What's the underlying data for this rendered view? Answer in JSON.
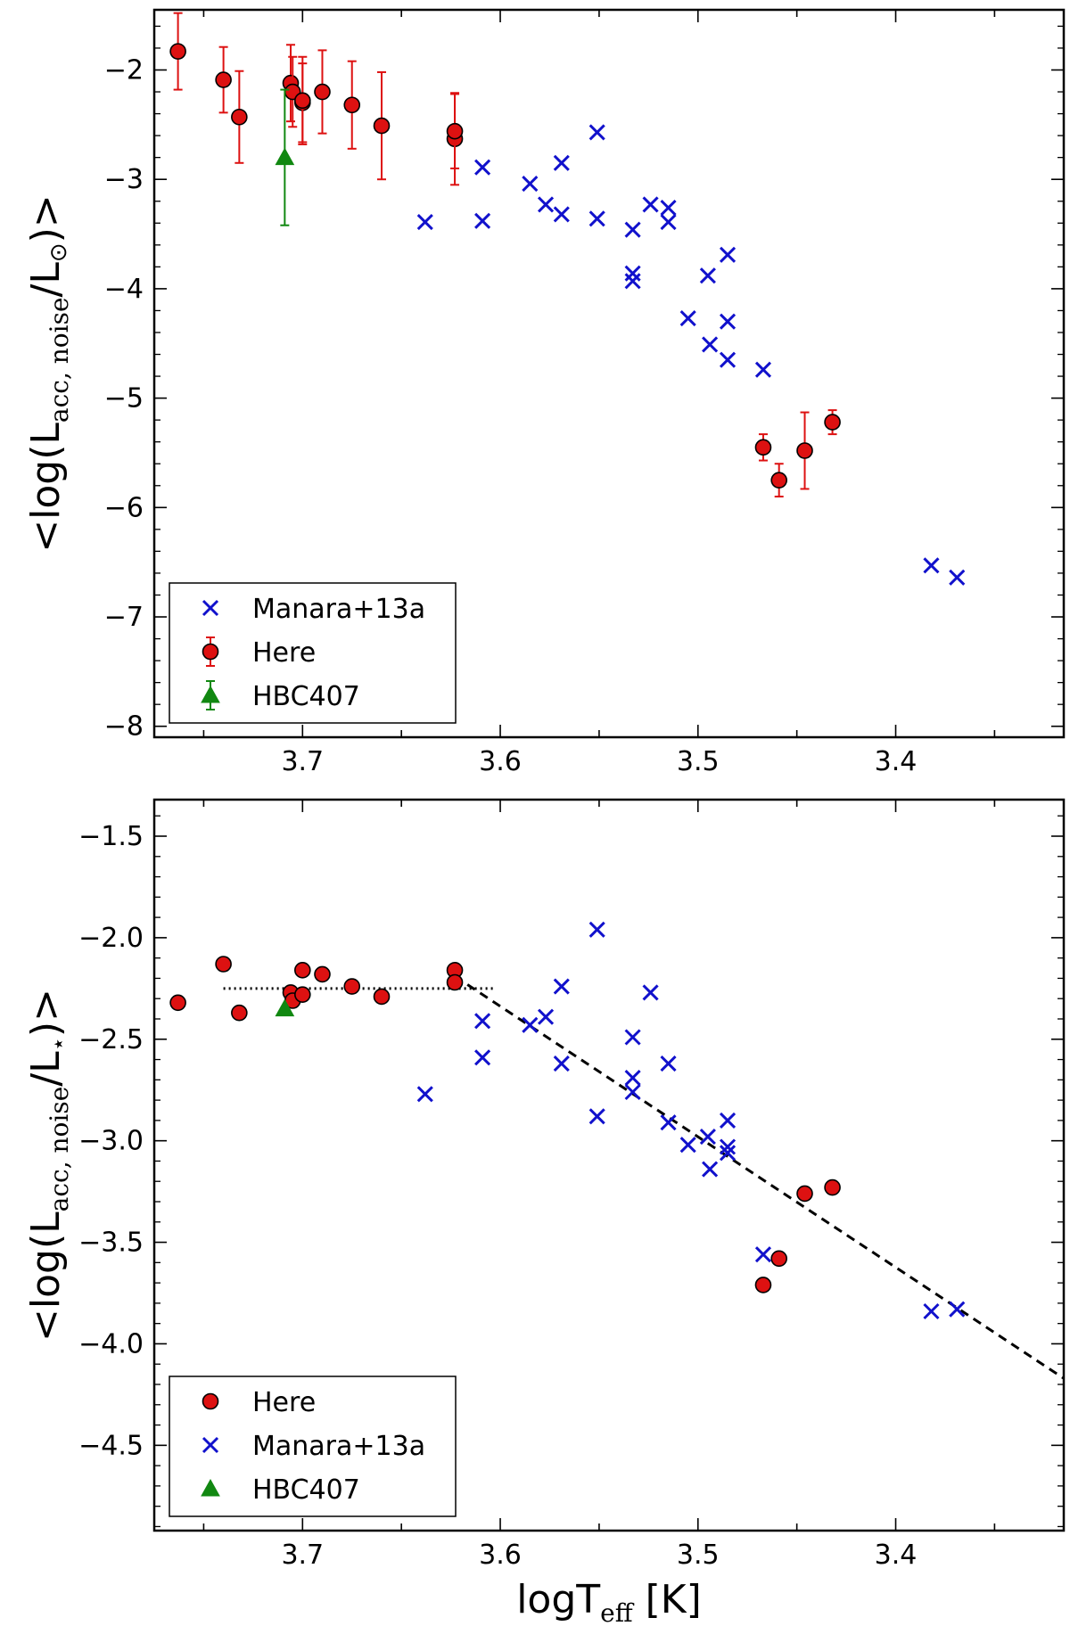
{
  "colors": {
    "here": "#dd1111",
    "manara": "#1111cc",
    "hbc407": "#118811",
    "line": "#000000"
  },
  "chart_data": [
    {
      "type": "scatter",
      "panel": "top",
      "xlim": [
        3.775,
        3.315
      ],
      "ylim": [
        -8.1,
        -1.45
      ],
      "x_ticks": [
        "3.7",
        "3.6",
        "3.5",
        "3.4"
      ],
      "x_tick_values": [
        3.7,
        3.6,
        3.5,
        3.4
      ],
      "y_ticks": [
        "−2",
        "−3",
        "−4",
        "−5",
        "−6",
        "−7",
        "−8"
      ],
      "y_tick_values": [
        -2,
        -3,
        -4,
        -5,
        -6,
        -7,
        -8
      ],
      "ylabel": {
        "prefix": "<log(L",
        "sub": "acc, noise",
        "suffix": "/L",
        "sym": "⊙",
        "end": ")>"
      },
      "legend_position": "lower-left",
      "legend": [
        {
          "label": "Manara+13a",
          "series": "manara"
        },
        {
          "label": "Here",
          "series": "here"
        },
        {
          "label": "HBC407",
          "series": "hbc407"
        }
      ],
      "series": {
        "manara": {
          "name": "Manara+13a",
          "marker": "x",
          "points": [
            [
              3.638,
              -3.39
            ],
            [
              3.609,
              -2.89
            ],
            [
              3.609,
              -3.38
            ],
            [
              3.585,
              -3.04
            ],
            [
              3.577,
              -3.23
            ],
            [
              3.569,
              -2.85
            ],
            [
              3.569,
              -3.32
            ],
            [
              3.551,
              -2.57
            ],
            [
              3.551,
              -3.36
            ],
            [
              3.533,
              -3.46
            ],
            [
              3.533,
              -3.86
            ],
            [
              3.533,
              -3.93
            ],
            [
              3.524,
              -3.23
            ],
            [
              3.515,
              -3.26
            ],
            [
              3.515,
              -3.39
            ],
            [
              3.505,
              -4.27
            ],
            [
              3.495,
              -3.88
            ],
            [
              3.494,
              -4.51
            ],
            [
              3.485,
              -3.69
            ],
            [
              3.485,
              -4.3
            ],
            [
              3.485,
              -4.65
            ],
            [
              3.467,
              -4.74
            ],
            [
              3.382,
              -6.53
            ],
            [
              3.369,
              -6.64
            ]
          ]
        },
        "here": {
          "name": "Here",
          "marker": "circle",
          "points": [
            [
              3.763,
              -1.83,
              0.35,
              0.35
            ],
            [
              3.74,
              -2.09,
              0.3,
              0.3
            ],
            [
              3.732,
              -2.43,
              0.42,
              0.42
            ],
            [
              3.706,
              -2.12,
              0.35,
              0.35
            ],
            [
              3.705,
              -2.2,
              0.32,
              0.32
            ],
            [
              3.7,
              -2.3,
              0.36,
              0.36
            ],
            [
              3.7,
              -2.28,
              0.4,
              0.4
            ],
            [
              3.69,
              -2.2,
              0.38,
              0.38
            ],
            [
              3.675,
              -2.32,
              0.4,
              0.4
            ],
            [
              3.66,
              -2.51,
              0.49,
              0.49
            ],
            [
              3.623,
              -2.63,
              0.42,
              0.42
            ],
            [
              3.623,
              -2.56,
              0.34,
              0.34
            ],
            [
              3.467,
              -5.45,
              0.12,
              0.12
            ],
            [
              3.459,
              -5.75,
              0.15,
              0.15
            ],
            [
              3.446,
              -5.48,
              0.35,
              0.35
            ],
            [
              3.432,
              -5.22,
              0.11,
              0.11
            ]
          ]
        },
        "hbc407": {
          "name": "HBC407",
          "marker": "triangle",
          "points": [
            [
              3.709,
              -2.8,
              0.62,
              0.62
            ]
          ]
        }
      }
    },
    {
      "type": "scatter",
      "panel": "bottom",
      "xlim": [
        3.775,
        3.315
      ],
      "ylim": [
        -4.92,
        -1.32
      ],
      "xlabel": {
        "prefix": "logT",
        "sub": "eff",
        "suffix": " [K]"
      },
      "x_ticks": [
        "3.7",
        "3.6",
        "3.5",
        "3.4"
      ],
      "x_tick_values": [
        3.7,
        3.6,
        3.5,
        3.4
      ],
      "y_ticks": [
        "−1.5",
        "−2.0",
        "−2.5",
        "−3.0",
        "−3.5",
        "−4.0",
        "−4.5"
      ],
      "y_tick_values": [
        -1.5,
        -2.0,
        -2.5,
        -3.0,
        -3.5,
        -4.0,
        -4.5
      ],
      "ylabel": {
        "prefix": "<log(L",
        "sub": "acc, noise",
        "suffix": "/L",
        "sym": "⋆",
        "end": ")>"
      },
      "legend_position": "lower-left",
      "legend": [
        {
          "label": "Here",
          "series": "here"
        },
        {
          "label": "Manara+13a",
          "series": "manara"
        },
        {
          "label": "HBC407",
          "series": "hbc407"
        }
      ],
      "series": {
        "manara": {
          "name": "Manara+13a",
          "marker": "x",
          "points": [
            [
              3.638,
              -2.77
            ],
            [
              3.609,
              -2.41
            ],
            [
              3.609,
              -2.59
            ],
            [
              3.585,
              -2.43
            ],
            [
              3.577,
              -2.39
            ],
            [
              3.569,
              -2.24
            ],
            [
              3.569,
              -2.62
            ],
            [
              3.551,
              -1.96
            ],
            [
              3.551,
              -2.88
            ],
            [
              3.533,
              -2.49
            ],
            [
              3.533,
              -2.69
            ],
            [
              3.533,
              -2.76
            ],
            [
              3.524,
              -2.27
            ],
            [
              3.515,
              -2.62
            ],
            [
              3.515,
              -2.91
            ],
            [
              3.505,
              -3.02
            ],
            [
              3.495,
              -2.98
            ],
            [
              3.494,
              -3.14
            ],
            [
              3.485,
              -2.9
            ],
            [
              3.485,
              -3.03
            ],
            [
              3.485,
              -3.06
            ],
            [
              3.467,
              -3.56
            ],
            [
              3.382,
              -3.84
            ],
            [
              3.369,
              -3.83
            ]
          ]
        },
        "here": {
          "name": "Here",
          "marker": "circle",
          "points": [
            [
              3.763,
              -2.32
            ],
            [
              3.74,
              -2.13
            ],
            [
              3.732,
              -2.37
            ],
            [
              3.706,
              -2.27
            ],
            [
              3.705,
              -2.31
            ],
            [
              3.7,
              -2.16
            ],
            [
              3.7,
              -2.28
            ],
            [
              3.69,
              -2.18
            ],
            [
              3.675,
              -2.24
            ],
            [
              3.66,
              -2.29
            ],
            [
              3.623,
              -2.16
            ],
            [
              3.623,
              -2.22
            ],
            [
              3.467,
              -3.71
            ],
            [
              3.459,
              -3.58
            ],
            [
              3.446,
              -3.26
            ],
            [
              3.432,
              -3.23
            ]
          ]
        },
        "hbc407": {
          "name": "HBC407",
          "marker": "triangle",
          "points": [
            [
              3.709,
              -2.35
            ]
          ]
        }
      },
      "fit_lines": [
        {
          "style": "dotted",
          "points": [
            [
              3.74,
              -2.25
            ],
            [
              3.603,
              -2.25
            ]
          ]
        },
        {
          "style": "dashed",
          "points": [
            [
              3.623,
              -2.19
            ],
            [
              3.315,
              -4.17
            ]
          ]
        }
      ]
    }
  ]
}
